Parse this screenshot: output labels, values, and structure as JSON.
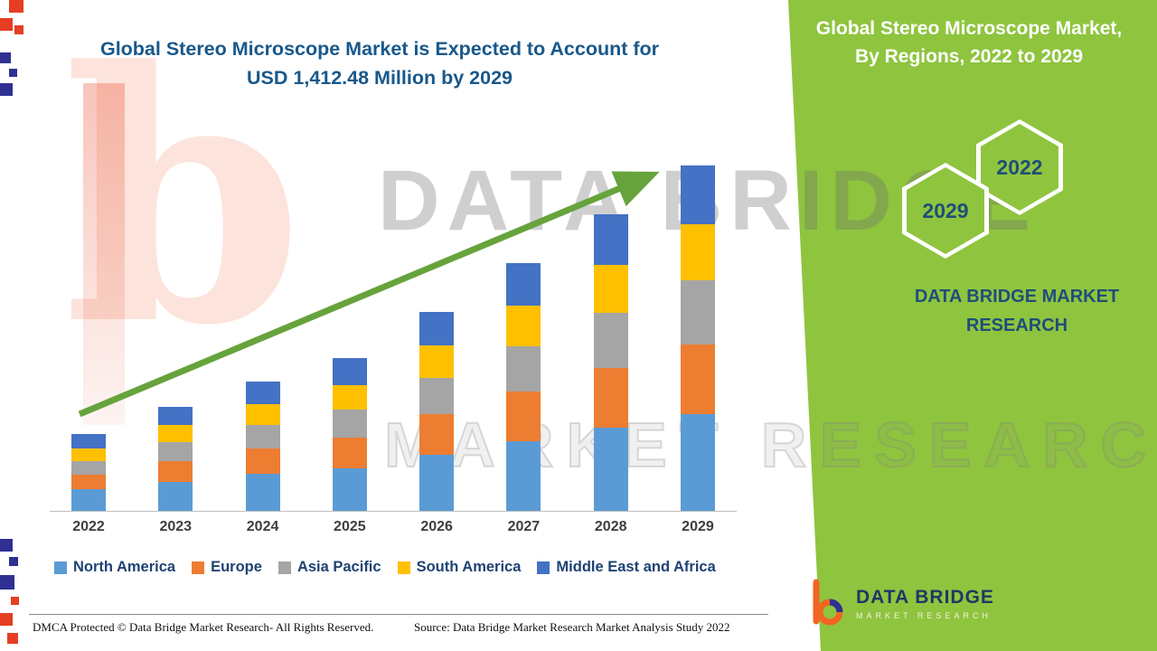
{
  "title": {
    "line1": "Global Stereo Microscope Market is Expected to Account for",
    "line2": "USD 1,412.48 Million by 2029"
  },
  "side_panel": {
    "heading_line1": "Global Stereo Microscope Market,",
    "heading_line2": "By Regions, 2022 to 2029",
    "hexagon_labels": [
      "2029",
      "2022"
    ],
    "brand_line1": "DATA BRIDGE MARKET",
    "brand_line2": "RESEARCH"
  },
  "watermark": {
    "letter": "b",
    "line1": "DATA BRIDGE",
    "line2": "MARKET RESEARCH"
  },
  "logo": {
    "name": "DATA BRIDGE",
    "tagline": "MARKET RESEARCH"
  },
  "footer": {
    "dmca": "DMCA Protected © Data Bridge Market Research- All Rights Reserved.",
    "source": "Source: Data Bridge Market Research Market Analysis Study 2022"
  },
  "colors": {
    "panel_green": "#8FC43F",
    "arrow_green": "#67A33C",
    "title_blue": "#19588A",
    "navy": "#1F4E79"
  },
  "chart_data": {
    "type": "bar",
    "stacked": true,
    "title": "Global Stereo Microscope Market, By Regions, 2022 to 2029",
    "categories": [
      "2022",
      "2023",
      "2024",
      "2025",
      "2026",
      "2027",
      "2028",
      "2029"
    ],
    "series": [
      {
        "name": "North America",
        "color": "#5B9BD5",
        "values": [
          90,
          120,
          150,
          175,
          230,
          285,
          340,
          395
        ]
      },
      {
        "name": "Europe",
        "color": "#ED7D31",
        "values": [
          60,
          85,
          105,
          125,
          165,
          205,
          245,
          287
        ]
      },
      {
        "name": "Asia Pacific",
        "color": "#A5A5A5",
        "values": [
          55,
          75,
          95,
          115,
          150,
          185,
          225,
          262
        ]
      },
      {
        "name": "South America",
        "color": "#FFC000",
        "values": [
          50,
          70,
          85,
          100,
          130,
          165,
          195,
          228
        ]
      },
      {
        "name": "Middle East and Africa",
        "color": "#4472C4",
        "values": [
          60,
          75,
          95,
          110,
          140,
          175,
          208,
          240.48
        ]
      }
    ],
    "ylim": [
      0,
      1450
    ],
    "y_axis_visible": false,
    "grid": false,
    "legend_position": "bottom",
    "annotations": [
      "upward green trend arrow from 2022 to 2029"
    ]
  }
}
